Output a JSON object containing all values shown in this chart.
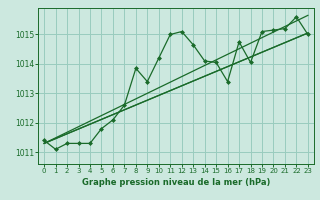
{
  "background_color": "#cce8df",
  "grid_color": "#99ccbe",
  "line_color": "#1a6b2a",
  "xlabel": "Graphe pression niveau de la mer (hPa)",
  "xlim": [
    -0.5,
    23.5
  ],
  "ylim": [
    1010.6,
    1015.9
  ],
  "yticks": [
    1011,
    1012,
    1013,
    1014,
    1015
  ],
  "xticks": [
    0,
    1,
    2,
    3,
    4,
    5,
    6,
    7,
    8,
    9,
    10,
    11,
    12,
    13,
    14,
    15,
    16,
    17,
    18,
    19,
    20,
    21,
    22,
    23
  ],
  "series_main_x": [
    0,
    1,
    2,
    3,
    4,
    5,
    6,
    7,
    8,
    9,
    10,
    11,
    12,
    13,
    14,
    15,
    16,
    17,
    18,
    19,
    20,
    21,
    22,
    23
  ],
  "series_main_y": [
    1011.4,
    1011.1,
    1011.3,
    1011.3,
    1011.3,
    1011.8,
    1012.1,
    1012.6,
    1013.85,
    1013.4,
    1014.2,
    1015.0,
    1015.1,
    1014.65,
    1014.1,
    1014.05,
    1013.4,
    1014.75,
    1014.05,
    1015.1,
    1015.15,
    1015.2,
    1015.6,
    1015.0
  ],
  "series_line1_x": [
    0,
    23
  ],
  "series_line1_y": [
    1011.3,
    1015.65
  ],
  "series_line2_x": [
    0,
    23
  ],
  "series_line2_y": [
    1011.3,
    1015.05
  ],
  "series_line3_x": [
    0,
    23
  ],
  "series_line3_y": [
    1011.3,
    1015.05
  ]
}
